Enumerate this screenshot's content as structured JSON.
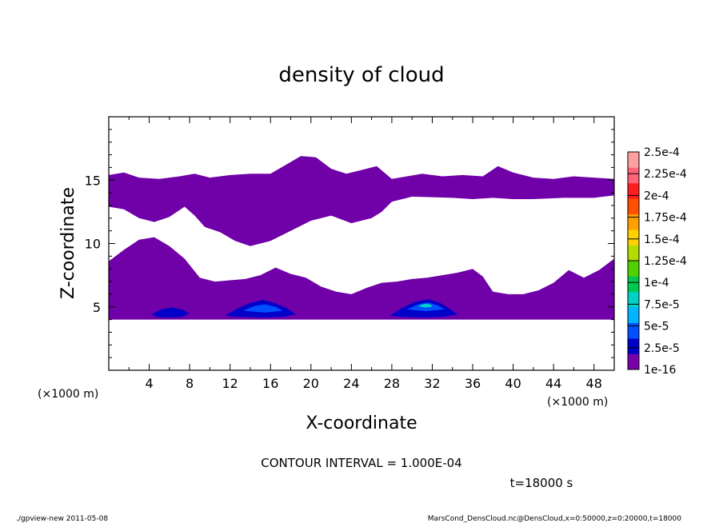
{
  "chart_data": {
    "type": "heatmap",
    "title": "density of cloud",
    "xlabel": "X-coordinate",
    "ylabel": "Z-coordinate",
    "x_unit_left": "(×1000 m)",
    "x_unit_right": "(×1000 m)",
    "xlim": [
      0,
      50
    ],
    "ylim": [
      0,
      20
    ],
    "xticks": [
      4,
      8,
      12,
      16,
      20,
      24,
      28,
      32,
      36,
      40,
      44,
      48
    ],
    "yticks": [
      5,
      10,
      15
    ],
    "colorbar": {
      "labels": [
        "2.5e-4",
        "2.25e-4",
        "2e-4",
        "1.75e-4",
        "1.5e-4",
        "1.25e-4",
        "1e-4",
        "7.5e-5",
        "5e-5",
        "2.5e-5",
        "1e-16"
      ],
      "colors": [
        "#7a00aa",
        "#0000c8",
        "#0050ff",
        "#00b4ff",
        "#00d2c8",
        "#00c850",
        "#50d200",
        "#b4dc00",
        "#ffd200",
        "#ffa000",
        "#ff5000",
        "#ff1e1e",
        "#ff6478",
        "#ffa0a0"
      ]
    },
    "cloud_fill_color": "#7000a8",
    "cloud_regions": [
      {
        "name": "upper cloud layer",
        "level": "1e-16",
        "outline": [
          [
            0,
            15.4
          ],
          [
            1.5,
            15.6
          ],
          [
            3,
            15.2
          ],
          [
            5,
            15.1
          ],
          [
            7,
            15.3
          ],
          [
            8.5,
            15.5
          ],
          [
            10,
            15.2
          ],
          [
            12,
            15.4
          ],
          [
            14,
            15.5
          ],
          [
            16,
            15.5
          ],
          [
            17.5,
            16.2
          ],
          [
            19,
            16.9
          ],
          [
            20.5,
            16.8
          ],
          [
            22,
            15.9
          ],
          [
            23.5,
            15.5
          ],
          [
            25,
            15.8
          ],
          [
            26.5,
            16.1
          ],
          [
            28,
            15.1
          ],
          [
            29.5,
            15.3
          ],
          [
            31,
            15.5
          ],
          [
            33,
            15.3
          ],
          [
            35,
            15.4
          ],
          [
            37,
            15.3
          ],
          [
            38.5,
            16.1
          ],
          [
            40,
            15.6
          ],
          [
            42,
            15.2
          ],
          [
            44,
            15.1
          ],
          [
            46,
            15.3
          ],
          [
            48,
            15.2
          ],
          [
            50,
            15.1
          ],
          [
            50,
            13.8
          ],
          [
            48,
            13.6
          ],
          [
            45,
            13.6
          ],
          [
            42,
            13.5
          ],
          [
            40,
            13.5
          ],
          [
            38,
            13.6
          ],
          [
            36,
            13.5
          ],
          [
            34,
            13.6
          ],
          [
            30,
            13.7
          ],
          [
            28,
            13.3
          ],
          [
            27,
            12.5
          ],
          [
            26,
            12.0
          ],
          [
            24,
            11.6
          ],
          [
            22,
            12.2
          ],
          [
            20,
            11.8
          ],
          [
            18,
            11.0
          ],
          [
            16,
            10.2
          ],
          [
            14,
            9.8
          ],
          [
            12.5,
            10.2
          ],
          [
            11,
            10.9
          ],
          [
            9.5,
            11.3
          ],
          [
            8.5,
            12.2
          ],
          [
            7.5,
            12.9
          ],
          [
            6,
            12.1
          ],
          [
            4.5,
            11.7
          ],
          [
            3,
            12.0
          ],
          [
            1.5,
            12.7
          ],
          [
            0,
            12.9
          ]
        ]
      },
      {
        "name": "lower cloud layer",
        "level": "1e-16",
        "outline": [
          [
            0,
            8.6
          ],
          [
            1.5,
            9.5
          ],
          [
            3,
            10.3
          ],
          [
            4.5,
            10.5
          ],
          [
            6,
            9.8
          ],
          [
            7.5,
            8.8
          ],
          [
            9,
            7.3
          ],
          [
            10.5,
            7.0
          ],
          [
            12,
            7.1
          ],
          [
            13.5,
            7.2
          ],
          [
            15,
            7.5
          ],
          [
            16.5,
            8.1
          ],
          [
            18,
            7.6
          ],
          [
            19.5,
            7.3
          ],
          [
            21,
            6.6
          ],
          [
            22.5,
            6.2
          ],
          [
            24,
            6.0
          ],
          [
            25.5,
            6.5
          ],
          [
            27,
            6.9
          ],
          [
            28.5,
            7.0
          ],
          [
            30,
            7.2
          ],
          [
            31.5,
            7.3
          ],
          [
            33,
            7.5
          ],
          [
            34.5,
            7.7
          ],
          [
            36,
            8.0
          ],
          [
            37,
            7.4
          ],
          [
            38,
            6.2
          ],
          [
            39.5,
            6.0
          ],
          [
            41,
            6.0
          ],
          [
            42.5,
            6.3
          ],
          [
            44,
            6.9
          ],
          [
            45.5,
            7.9
          ],
          [
            47,
            7.3
          ],
          [
            48.5,
            7.9
          ],
          [
            50,
            8.8
          ],
          [
            50,
            4.0
          ],
          [
            0,
            4.0
          ]
        ]
      },
      {
        "name": "dense core near x=6",
        "level": "2.5e-5",
        "outline": [
          [
            4.2,
            4.4
          ],
          [
            5.2,
            4.8
          ],
          [
            6.2,
            4.95
          ],
          [
            7.2,
            4.8
          ],
          [
            8.0,
            4.5
          ],
          [
            7.2,
            4.2
          ],
          [
            6.0,
            4.15
          ],
          [
            4.8,
            4.2
          ]
        ]
      },
      {
        "name": "dense core near x=15",
        "level": "2.5e-5",
        "outline": [
          [
            11.5,
            4.3
          ],
          [
            12.8,
            4.9
          ],
          [
            14.0,
            5.3
          ],
          [
            15.2,
            5.55
          ],
          [
            16.4,
            5.3
          ],
          [
            17.6,
            4.9
          ],
          [
            18.5,
            4.4
          ],
          [
            17.2,
            4.2
          ],
          [
            15.0,
            4.15
          ],
          [
            12.8,
            4.2
          ]
        ]
      },
      {
        "name": "dense core near x=31",
        "level": "2.5e-5",
        "outline": [
          [
            27.8,
            4.3
          ],
          [
            29.0,
            4.9
          ],
          [
            30.3,
            5.4
          ],
          [
            31.6,
            5.6
          ],
          [
            32.8,
            5.3
          ],
          [
            33.8,
            4.8
          ],
          [
            34.5,
            4.4
          ],
          [
            33.0,
            4.2
          ],
          [
            31.0,
            4.15
          ],
          [
            29.0,
            4.2
          ]
        ]
      },
      {
        "name": "core highlight near x=15",
        "level": "5e-5",
        "outline": [
          [
            13.3,
            4.7
          ],
          [
            14.5,
            5.1
          ],
          [
            15.5,
            5.2
          ],
          [
            16.5,
            5.0
          ],
          [
            17.2,
            4.7
          ],
          [
            15.5,
            4.55
          ]
        ]
      },
      {
        "name": "core highlight near x=31",
        "level": "5e-5",
        "outline": [
          [
            29.5,
            4.8
          ],
          [
            30.6,
            5.2
          ],
          [
            31.6,
            5.35
          ],
          [
            32.6,
            5.1
          ],
          [
            33.2,
            4.8
          ],
          [
            31.4,
            4.65
          ]
        ]
      },
      {
        "name": "core peak near x=31",
        "level": "7.5e-5",
        "outline": [
          [
            30.6,
            5.05
          ],
          [
            31.2,
            5.25
          ],
          [
            31.8,
            5.2
          ],
          [
            32.0,
            5.0
          ],
          [
            31.3,
            4.95
          ]
        ]
      }
    ],
    "grid": false,
    "legend": "right"
  },
  "annotations": {
    "contour_interval": "CONTOUR INTERVAL = 1.000E-04",
    "time": "t=18000 s",
    "footer_left": "./gpview-new  2011-05-08",
    "footer_right": "MarsCond_DensCloud.nc@DensCloud,x=0:50000,z=0:20000,t=18000"
  }
}
